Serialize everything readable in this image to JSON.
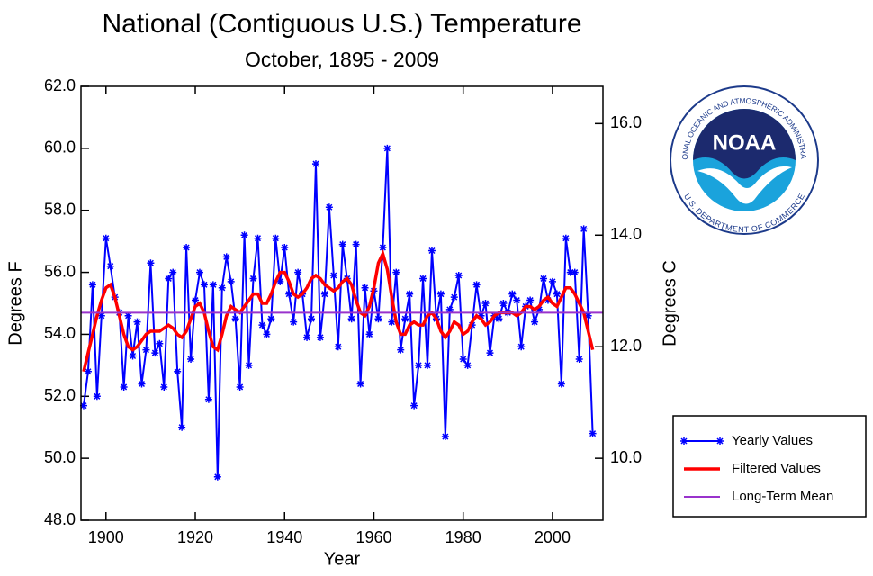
{
  "chart_data": {
    "type": "line",
    "title": "National (Contiguous U.S.) Temperature",
    "subtitle": "October, 1895 - 2009",
    "x_label": "Year",
    "y_label": "Degrees F",
    "y2_label": "Degrees C",
    "x": [
      1895,
      1896,
      1897,
      1898,
      1899,
      1900,
      1901,
      1902,
      1903,
      1904,
      1905,
      1906,
      1907,
      1908,
      1909,
      1910,
      1911,
      1912,
      1913,
      1914,
      1915,
      1916,
      1917,
      1918,
      1919,
      1920,
      1921,
      1922,
      1923,
      1924,
      1925,
      1926,
      1927,
      1928,
      1929,
      1930,
      1931,
      1932,
      1933,
      1934,
      1935,
      1936,
      1937,
      1938,
      1939,
      1940,
      1941,
      1942,
      1943,
      1944,
      1945,
      1946,
      1947,
      1948,
      1949,
      1950,
      1951,
      1952,
      1953,
      1954,
      1955,
      1956,
      1957,
      1958,
      1959,
      1960,
      1961,
      1962,
      1963,
      1964,
      1965,
      1966,
      1967,
      1968,
      1969,
      1970,
      1971,
      1972,
      1973,
      1974,
      1975,
      1976,
      1977,
      1978,
      1979,
      1980,
      1981,
      1982,
      1983,
      1984,
      1985,
      1986,
      1987,
      1988,
      1989,
      1990,
      1991,
      1992,
      1993,
      1994,
      1995,
      1996,
      1997,
      1998,
      1999,
      2000,
      2001,
      2002,
      2003,
      2004,
      2005,
      2006,
      2007,
      2008,
      2009
    ],
    "series": [
      {
        "name": "Yearly Values",
        "color": "#0000ff",
        "values": [
          51.7,
          52.8,
          55.6,
          52.0,
          54.6,
          57.1,
          56.2,
          55.2,
          54.7,
          52.3,
          54.6,
          53.3,
          54.4,
          52.4,
          53.5,
          56.3,
          53.4,
          53.7,
          52.3,
          55.8,
          56.0,
          52.8,
          51.0,
          56.8,
          53.2,
          55.1,
          56.0,
          55.6,
          51.9,
          55.6,
          49.4,
          55.5,
          56.5,
          55.7,
          54.5,
          52.3,
          57.2,
          53.0,
          55.8,
          57.1,
          54.3,
          54.0,
          54.5,
          57.1,
          55.7,
          56.8,
          55.3,
          54.4,
          56.0,
          55.3,
          53.9,
          54.5,
          59.5,
          53.9,
          55.3,
          58.1,
          55.9,
          53.6,
          56.9,
          55.8,
          54.5,
          56.9,
          52.4,
          55.5,
          54.0,
          55.4,
          54.5,
          56.8,
          60.0,
          54.4,
          56.0,
          53.5,
          54.5,
          55.3,
          51.7,
          53.0,
          55.8,
          53.0,
          56.7,
          54.5,
          55.3,
          50.7,
          54.8,
          55.2,
          55.9,
          53.2,
          53.0,
          54.3,
          55.6,
          54.6,
          55.0,
          53.4,
          54.6,
          54.5,
          55.0,
          54.7,
          55.3,
          55.1,
          53.6,
          54.9,
          55.1,
          54.4,
          54.8,
          55.8,
          55.1,
          55.7,
          55.3,
          52.4,
          57.1,
          56.0,
          56.0,
          53.2,
          57.4,
          54.6,
          50.8
        ]
      },
      {
        "name": "Filtered Values",
        "color": "#ff0000",
        "values": [
          52.8,
          53.4,
          54.0,
          54.6,
          55.1,
          55.5,
          55.6,
          55.2,
          54.6,
          54.0,
          53.6,
          53.5,
          53.6,
          53.8,
          54.0,
          54.1,
          54.1,
          54.1,
          54.2,
          54.3,
          54.2,
          54.0,
          53.9,
          54.1,
          54.5,
          54.9,
          55.0,
          54.7,
          54.1,
          53.6,
          53.5,
          54.0,
          54.6,
          54.9,
          54.8,
          54.7,
          54.9,
          55.1,
          55.3,
          55.3,
          55.0,
          55.0,
          55.3,
          55.7,
          56.0,
          56.0,
          55.7,
          55.3,
          55.2,
          55.3,
          55.5,
          55.8,
          55.9,
          55.8,
          55.6,
          55.5,
          55.4,
          55.5,
          55.7,
          55.8,
          55.6,
          55.1,
          54.7,
          54.6,
          54.9,
          55.5,
          56.3,
          56.6,
          56.1,
          55.2,
          54.4,
          54.0,
          54.0,
          54.3,
          54.4,
          54.3,
          54.3,
          54.6,
          54.7,
          54.5,
          54.1,
          53.9,
          54.1,
          54.4,
          54.3,
          54.0,
          54.1,
          54.4,
          54.6,
          54.5,
          54.3,
          54.4,
          54.6,
          54.7,
          54.7,
          54.7,
          54.7,
          54.6,
          54.7,
          54.9,
          54.9,
          54.8,
          54.9,
          55.1,
          55.2,
          55.0,
          54.9,
          55.2,
          55.5,
          55.5,
          55.3,
          55.0,
          54.7,
          54.1,
          53.5
        ]
      },
      {
        "name": "Long-Term Mean",
        "color": "#9933cc",
        "value": 54.7
      }
    ],
    "xlim": [
      1894.4,
      2011.3
    ],
    "xticks": [
      1900,
      1920,
      1940,
      1960,
      1980,
      2000
    ],
    "ylim": [
      48,
      62
    ],
    "yticks": [
      {
        "value": 48,
        "label": "48.0"
      },
      {
        "value": 50,
        "label": "50.0"
      },
      {
        "value": 52,
        "label": "52.0"
      },
      {
        "value": 54,
        "label": "54.0"
      },
      {
        "value": 56,
        "label": "56.0"
      },
      {
        "value": 58,
        "label": "58.0"
      },
      {
        "value": 60,
        "label": "60.0"
      },
      {
        "value": 62,
        "label": "62.0"
      }
    ],
    "y2lim": [
      8.889,
      16.667
    ],
    "y2ticks": [
      {
        "value": 10,
        "label": "10.0"
      },
      {
        "value": 12,
        "label": "12.0"
      },
      {
        "value": 14,
        "label": "14.0"
      },
      {
        "value": 16,
        "label": "16.0"
      }
    ],
    "legend": "lower right",
    "logo": {
      "acronym": "NOAA",
      "ring_top": "NATIONAL OCEANIC AND ATMOSPHERIC ADMINISTRATION",
      "ring_bottom": "U.S. DEPARTMENT OF COMMERCE"
    }
  }
}
